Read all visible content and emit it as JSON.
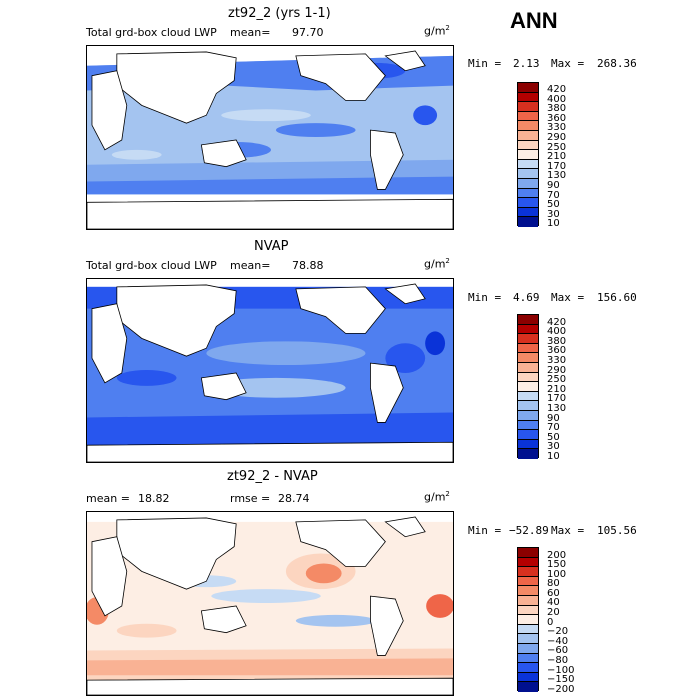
{
  "season": "ANN",
  "units_base": "g/m",
  "units_exp": "2",
  "panels": [
    {
      "title": "zt92_2 (yrs 1-1)",
      "left_text": "Total grd-box cloud LWP",
      "mean_label": "mean=",
      "mean_value": "97.70",
      "min_label": "Min =",
      "min_value": "2.13",
      "max_label": "Max =",
      "max_value": "268.36",
      "levels": [
        "420",
        "400",
        "380",
        "360",
        "330",
        "290",
        "250",
        "210",
        "170",
        "130",
        "90",
        "70",
        "50",
        "30",
        "10"
      ],
      "colors": [
        "#8b0000",
        "#b30000",
        "#d7301f",
        "#ef6548",
        "#f48a66",
        "#f9b294",
        "#fcd5c0",
        "#fdeee4",
        "#c6dbf4",
        "#a4c4f0",
        "#7fa8ee",
        "#4f7ff0",
        "#2856ee",
        "#0a33d8",
        "#00108f"
      ]
    },
    {
      "title": "NVAP",
      "left_text": "Total grd-box cloud LWP",
      "mean_label": "mean=",
      "mean_value": "78.88",
      "min_label": "Min =",
      "min_value": "4.69",
      "max_label": "Max =",
      "max_value": "156.60",
      "levels": [
        "420",
        "400",
        "380",
        "360",
        "330",
        "290",
        "250",
        "210",
        "170",
        "130",
        "90",
        "70",
        "50",
        "30",
        "10"
      ],
      "colors": [
        "#8b0000",
        "#b30000",
        "#d7301f",
        "#ef6548",
        "#f48a66",
        "#f9b294",
        "#fcd5c0",
        "#fdeee4",
        "#c6dbf4",
        "#a4c4f0",
        "#7fa8ee",
        "#4f7ff0",
        "#2856ee",
        "#0a33d8",
        "#00108f"
      ]
    },
    {
      "title": "zt92_2 - NVAP",
      "mean_label": "mean =",
      "mean_value": "18.82",
      "rmse_label": "rmse =",
      "rmse_value": "28.74",
      "min_label": "Min =",
      "min_value": "−52.89",
      "max_label": "Max =",
      "max_value": "105.56",
      "levels": [
        "200",
        "150",
        "100",
        "80",
        "60",
        "40",
        "20",
        "0",
        "−20",
        "−40",
        "−60",
        "−80",
        "−100",
        "−150",
        "−200"
      ],
      "colors": [
        "#8b0000",
        "#b30000",
        "#d7301f",
        "#ef6548",
        "#f48a66",
        "#f9b294",
        "#fcd5c0",
        "#fdeee4",
        "#c6dbf4",
        "#a4c4f0",
        "#7fa8ee",
        "#4f7ff0",
        "#2856ee",
        "#0a33d8",
        "#00108f"
      ]
    }
  ]
}
